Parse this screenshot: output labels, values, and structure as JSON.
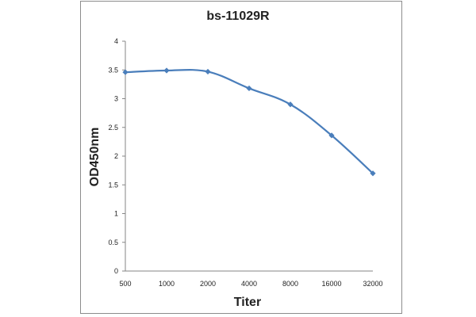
{
  "chart_data": {
    "type": "line",
    "title": "bs-11029R",
    "xlabel": "Titer",
    "ylabel": "OD450nm",
    "categories": [
      "500",
      "1000",
      "2000",
      "4000",
      "8000",
      "16000",
      "32000"
    ],
    "series": [
      {
        "values": [
          3.46,
          3.49,
          3.47,
          3.18,
          2.9,
          2.36,
          1.7
        ]
      }
    ],
    "ylim": [
      0,
      4
    ],
    "yticks": [
      "0",
      "0.5",
      "1",
      "1.5",
      "2",
      "2.5",
      "3",
      "3.5",
      "4"
    ],
    "grid": false,
    "legend": "none",
    "line_color": "#4a7ebb",
    "marker": "diamond"
  }
}
